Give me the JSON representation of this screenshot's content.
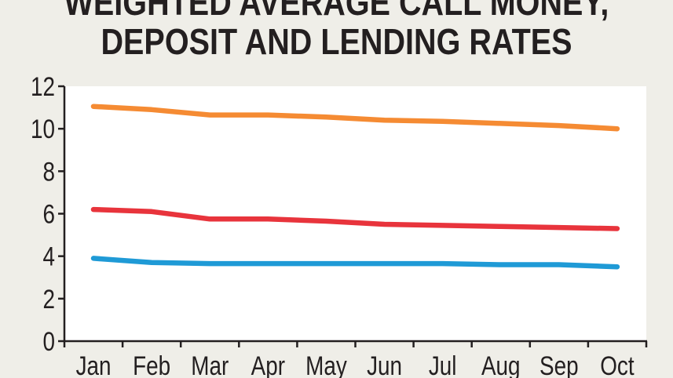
{
  "chart_data": {
    "type": "line",
    "title_lines": [
      "WEIGHTED AVERAGE CALL MONEY,",
      "DEPOSIT AND LENDING RATES"
    ],
    "categories": [
      "Jan",
      "Feb",
      "Mar",
      "Apr",
      "May",
      "Jun",
      "Jul",
      "Aug",
      "Sep",
      "Oct"
    ],
    "ylim": [
      0,
      12
    ],
    "yticks": [
      0,
      2,
      4,
      6,
      8,
      10,
      12
    ],
    "grid": false,
    "series": [
      {
        "color": "#f58b33",
        "values": [
          11.05,
          10.9,
          10.65,
          10.65,
          10.55,
          10.4,
          10.35,
          10.25,
          10.15,
          10.0
        ]
      },
      {
        "color": "#e8343c",
        "values": [
          6.2,
          6.1,
          5.75,
          5.75,
          5.65,
          5.5,
          5.45,
          5.4,
          5.35,
          5.3
        ]
      },
      {
        "color": "#1f9ad6",
        "values": [
          3.9,
          3.7,
          3.65,
          3.65,
          3.65,
          3.65,
          3.65,
          3.6,
          3.6,
          3.5
        ]
      }
    ]
  }
}
